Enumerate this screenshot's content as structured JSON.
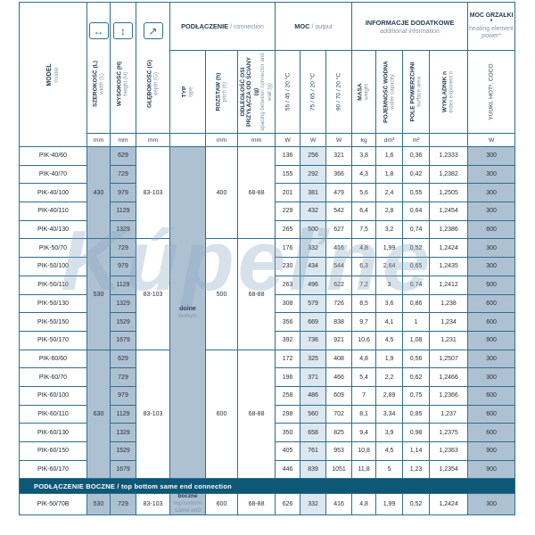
{
  "watermark": "Kúpeľne",
  "colors": {
    "border": "#2c6f8e",
    "banner_bg": "#0e5877",
    "shade_bg": "#aec1d2",
    "highlight_bg": "#dce7f0",
    "header_text": "#1f3a52",
    "subtext": "#8095a8"
  },
  "header": {
    "model": {
      "pl": "MODEL",
      "en": "model"
    },
    "dims": [
      {
        "icon": "width-arrow-icon",
        "glyph": "↔",
        "pl": "SZEROKOŚĆ (L)",
        "en": "width (L)",
        "unit": "mm"
      },
      {
        "icon": "height-arrow-icon",
        "glyph": "↕",
        "pl": "WYSOKOŚĆ (H)",
        "en": "height (H)",
        "unit": "mm"
      },
      {
        "icon": "depth-arrow-icon",
        "glyph": "↗",
        "pl": "GŁĘBOKOŚĆ (G)",
        "en": "depth (G)",
        "unit": "mm"
      }
    ],
    "groups": [
      {
        "pl": "PODŁĄCZENIE",
        "en": "/ connection",
        "span": 3
      },
      {
        "pl": "MOC",
        "en": "/ output",
        "span": 3
      },
      {
        "pl": "INFORMACJE DODATKOWE",
        "en": "additional information",
        "span": 4
      },
      {
        "pl": "MOC GRZAŁKI *",
        "en": "heating element power*",
        "span": 1
      }
    ],
    "columns": [
      {
        "key": "typ",
        "pl": "TYP",
        "en": "type",
        "unit": "diag"
      },
      {
        "key": "pitch",
        "pl": "ROZSTAW (h)",
        "en": "pitch (h)",
        "unit": "mm"
      },
      {
        "key": "spacing",
        "pl": "ODLEGŁOŚĆ OSI PRZYŁĄCZA OD ŚCIANY (g)",
        "en": "spacing between connector and wall (g)",
        "unit": "mm"
      },
      {
        "key": "m55",
        "pl": "55 / 45 / 20 °C",
        "en": "",
        "unit": "W"
      },
      {
        "key": "m75",
        "pl": "75 / 65 / 20 °C",
        "en": "",
        "unit": "W"
      },
      {
        "key": "m90",
        "pl": "90 / 70 / 20 °C",
        "en": "",
        "unit": "W"
      },
      {
        "key": "mass",
        "pl": "MASA",
        "en": "weight",
        "unit": "kg"
      },
      {
        "key": "cap",
        "pl": "POJEMNOŚĆ WODNA",
        "en": "water capacity",
        "unit": "dm³"
      },
      {
        "key": "area",
        "pl": "POLE POWIERZCHNI",
        "en": "surface area",
        "unit": "m²"
      },
      {
        "key": "exp",
        "pl": "WYKŁADNIK n",
        "en": "index exponent n",
        "unit": "diag"
      },
      {
        "key": "heater",
        "pl": "YUUKI, HOT², COCO",
        "en": "",
        "unit": "W"
      }
    ]
  },
  "type_cell": {
    "pl": "dolne",
    "en": "bottom"
  },
  "groups": [
    {
      "width": "430",
      "depth": "83-103",
      "pitch": "400",
      "spacing": "68-88",
      "rows": [
        {
          "model": "PIK-40/60",
          "height": "629",
          "m55": "136",
          "m75": "256",
          "m90": "321",
          "mass": "3,8",
          "cap": "1,6",
          "area": "0,36",
          "exp": "1,2333",
          "heater": "300"
        },
        {
          "model": "PIK-40/70",
          "height": "729",
          "m55": "155",
          "m75": "292",
          "m90": "366",
          "mass": "4,3",
          "cap": "1,8",
          "area": "0,42",
          "exp": "1,2382",
          "heater": "300"
        },
        {
          "model": "PIK-40/100",
          "height": "979",
          "m55": "201",
          "m75": "381",
          "m90": "479",
          "mass": "5,6",
          "cap": "2,4",
          "area": "0,55",
          "exp": "1,2505",
          "heater": "300"
        },
        {
          "model": "PIK-40/110",
          "height": "1129",
          "m55": "229",
          "m75": "432",
          "m90": "542",
          "mass": "6,4",
          "cap": "2,8",
          "area": "0,64",
          "exp": "1,2454",
          "heater": "300"
        },
        {
          "model": "PIK-40/130",
          "height": "1329",
          "m55": "265",
          "m75": "500",
          "m90": "627",
          "mass": "7,5",
          "cap": "3,2",
          "area": "0,74",
          "exp": "1,2386",
          "heater": "600"
        }
      ]
    },
    {
      "width": "530",
      "depth": "83-103",
      "pitch": "500",
      "spacing": "68-88",
      "rows": [
        {
          "model": "PIK-50/70",
          "height": "729",
          "m55": "176",
          "m75": "332",
          "m90": "416",
          "mass": "4,8",
          "cap": "1,99",
          "area": "0,52",
          "exp": "1,2424",
          "heater": "300"
        },
        {
          "model": "PIK-50/100",
          "height": "979",
          "m55": "230",
          "m75": "434",
          "m90": "544",
          "mass": "6,3",
          "cap": "2,64",
          "area": "0,65",
          "exp": "1,2435",
          "heater": "300"
        },
        {
          "model": "PIK-50/110",
          "height": "1129",
          "m55": "263",
          "m75": "496",
          "m90": "622",
          "mass": "7,2",
          "cap": "3",
          "area": "0,74",
          "exp": "1,2412",
          "heater": "600"
        },
        {
          "model": "PIK-50/130",
          "height": "1329",
          "m55": "308",
          "m75": "579",
          "m90": "726",
          "mass": "8,5",
          "cap": "3,6",
          "area": "0,86",
          "exp": "1,238",
          "heater": "600"
        },
        {
          "model": "PIK-50/150",
          "height": "1529",
          "m55": "356",
          "m75": "669",
          "m90": "838",
          "mass": "9,7",
          "cap": "4,1",
          "area": "1",
          "exp": "1,234",
          "heater": "600"
        },
        {
          "model": "PIK-50/170",
          "height": "1679",
          "m55": "392",
          "m75": "736",
          "m90": "921",
          "mass": "10,6",
          "cap": "4,5",
          "area": "1,08",
          "exp": "1,231",
          "heater": "900"
        }
      ]
    },
    {
      "width": "630",
      "depth": "83-103",
      "pitch": "600",
      "spacing": "68-88",
      "rows": [
        {
          "model": "PIK-60/60",
          "height": "629",
          "m55": "172",
          "m75": "325",
          "m90": "408",
          "mass": "4,8",
          "cap": "1,9",
          "area": "0,56",
          "exp": "1,2507",
          "heater": "300"
        },
        {
          "model": "PIK-60/70",
          "height": "729",
          "m55": "196",
          "m75": "371",
          "m90": "466",
          "mass": "5,4",
          "cap": "2,2",
          "area": "0,62",
          "exp": "1,2466",
          "heater": "300"
        },
        {
          "model": "PIK-60/100",
          "height": "979",
          "m55": "258",
          "m75": "486",
          "m90": "609",
          "mass": "7",
          "cap": "2,89",
          "area": "0,75",
          "exp": "1,2366",
          "heater": "600"
        },
        {
          "model": "PIK-60/110",
          "height": "1129",
          "m55": "298",
          "m75": "560",
          "m90": "702",
          "mass": "8,1",
          "cap": "3,34",
          "area": "0,85",
          "exp": "1,237",
          "heater": "600"
        },
        {
          "model": "PIK-60/130",
          "height": "1329",
          "m55": "350",
          "m75": "658",
          "m90": "825",
          "mass": "9,4",
          "cap": "3,9",
          "area": "0,98",
          "exp": "1,2375",
          "heater": "600"
        },
        {
          "model": "PIK-60/150",
          "height": "1529",
          "m55": "405",
          "m75": "761",
          "m90": "953",
          "mass": "10,8",
          "cap": "4,5",
          "area": "1,14",
          "exp": "1,2363",
          "heater": "900"
        },
        {
          "model": "PIK-60/170",
          "height": "1679",
          "m55": "446",
          "m75": "839",
          "m90": "1051",
          "mass": "11,8",
          "cap": "5",
          "area": "1,23",
          "exp": "1,2354",
          "heater": "900"
        }
      ]
    }
  ],
  "banner": {
    "pl": "PODŁĄCZENIE BOCZNE",
    "en": "/ top bottom same end connection"
  },
  "bottom_row": {
    "model": "PIK-50/70B",
    "width": "530",
    "height": "729",
    "depth": "83-103",
    "type_pl": "boczne",
    "type_en": "top bottom same end",
    "pitch": "600",
    "spacing": "68-88",
    "m55": "626",
    "m75": "332",
    "m90": "416",
    "mass": "4,8",
    "cap": "1,99",
    "area": "0,52",
    "exp": "1,2424",
    "heater": "300"
  }
}
